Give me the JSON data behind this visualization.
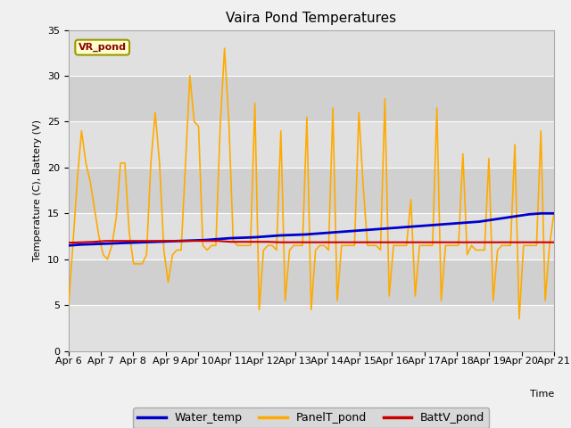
{
  "title": "Vaira Pond Temperatures",
  "xlabel": "Time",
  "ylabel": "Temperature (C), Battery (V)",
  "xlim": [
    0,
    15
  ],
  "ylim": [
    0,
    35
  ],
  "yticks": [
    0,
    5,
    10,
    15,
    20,
    25,
    30,
    35
  ],
  "xtick_labels": [
    "Apr 6",
    "Apr 7",
    "Apr 8",
    "Apr 9",
    "Apr 10",
    "Apr 11",
    "Apr 12",
    "Apr 13",
    "Apr 14",
    "Apr 15",
    "Apr 16",
    "Apr 17",
    "Apr 18",
    "Apr 19",
    "Apr 20",
    "Apr 21"
  ],
  "site_label": "VR_pond",
  "fig_bg_color": "#f0f0f0",
  "plot_bg_color": "#e8e8e8",
  "water_temp_color": "#0000cc",
  "panel_temp_color": "#ffaa00",
  "batt_color": "#cc0000",
  "legend_bg": "#d8d8d8",
  "band_colors": [
    "#e0e0e0",
    "#d0d0d0"
  ],
  "water_temp": [
    11.5,
    11.6,
    11.65,
    11.7,
    11.75,
    11.8,
    11.85,
    11.9,
    11.95,
    12.0,
    12.05,
    12.1,
    12.2,
    12.3,
    12.35,
    12.4,
    12.5,
    12.6,
    12.65,
    12.7,
    12.8,
    12.9,
    13.0,
    13.1,
    13.2,
    13.3,
    13.4,
    13.5,
    13.6,
    13.7,
    13.8,
    13.9,
    14.0,
    14.1,
    14.3,
    14.5,
    14.7,
    14.9,
    15.0,
    15.0
  ],
  "panel_temp": [
    5.0,
    11.5,
    18.5,
    24.0,
    20.5,
    18.5,
    15.5,
    12.5,
    10.5,
    10.0,
    11.5,
    14.5,
    20.5,
    20.5,
    13.0,
    9.5,
    9.5,
    9.5,
    10.5,
    20.5,
    26.0,
    20.5,
    11.0,
    7.5,
    10.5,
    11.0,
    11.0,
    20.5,
    30.0,
    25.0,
    24.5,
    11.5,
    11.0,
    11.5,
    11.5,
    24.5,
    33.0,
    25.0,
    12.0,
    11.5,
    11.5,
    11.5,
    11.5,
    27.0,
    4.5,
    11.0,
    11.5,
    11.5,
    11.0,
    24.0,
    5.5,
    11.0,
    11.5,
    11.5,
    11.5,
    25.5,
    4.5,
    11.0,
    11.5,
    11.5,
    11.0,
    26.5,
    5.5,
    11.5,
    11.5,
    11.5,
    11.5,
    26.0,
    18.0,
    11.5,
    11.5,
    11.5,
    11.0,
    27.5,
    6.0,
    11.5,
    11.5,
    11.5,
    11.5,
    16.5,
    6.0,
    11.5,
    11.5,
    11.5,
    11.5,
    26.5,
    5.5,
    11.5,
    11.5,
    11.5,
    11.5,
    21.5,
    10.5,
    11.5,
    11.0,
    11.0,
    11.0,
    21.0,
    5.5,
    11.0,
    11.5,
    11.5,
    11.5,
    22.5,
    3.5,
    11.5,
    11.5,
    11.5,
    11.5,
    24.0,
    5.5,
    11.5,
    15.0
  ],
  "batt_temp": [
    11.8,
    11.85,
    11.9,
    12.0,
    12.0,
    12.0,
    12.0,
    12.0,
    12.0,
    12.0,
    12.0,
    12.0,
    12.0,
    11.9,
    11.9,
    11.9,
    11.9,
    11.85,
    11.85,
    11.85,
    11.85,
    11.85,
    11.85,
    11.85,
    11.85,
    11.85,
    11.85,
    11.85,
    11.85,
    11.85,
    11.85,
    11.85,
    11.85,
    11.85,
    11.85,
    11.85,
    11.85,
    11.85,
    11.85,
    11.85
  ],
  "title_fontsize": 11,
  "axis_label_fontsize": 8,
  "tick_fontsize": 8,
  "legend_fontsize": 9
}
